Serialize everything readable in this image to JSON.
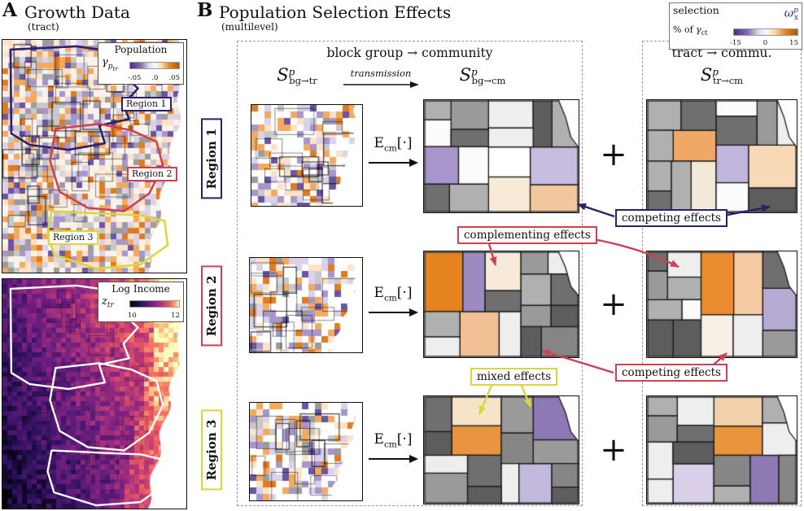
{
  "panel_a": {
    "label": "A",
    "title": "Growth Data",
    "subtitle": "(tract)",
    "growth_legend": {
      "title": "Population",
      "sym_base": "γ",
      "sym_sub": "p",
      "sym_subsub": "tr",
      "ticks": [
        "-.05",
        ".0",
        ".05"
      ]
    },
    "income_legend": {
      "title": "Log Income",
      "sym_base": "z",
      "sym_sub": "tr",
      "ticks": [
        "10",
        "12"
      ]
    },
    "region_labels": {
      "r1": "Region 1",
      "r2": "Region 2",
      "r3": "Region 3"
    }
  },
  "panel_b": {
    "label": "B",
    "title": "Population Selection Effects",
    "subtitle": "(multilevel)",
    "selection_legend": {
      "line1": "selection",
      "pct": "% of ",
      "pct_sym": "γ",
      "pct_sub": "ct",
      "sym_base": "ω",
      "sym_sup": "p",
      "sym_sub": "x",
      "ticks": [
        "-15",
        "0",
        "15"
      ]
    },
    "left_box": {
      "header": "block group → community",
      "map1_sym": {
        "base": "S",
        "sup": "p",
        "sub": "bg→tr"
      },
      "transmission": "transmission",
      "map2_sym": {
        "base": "S",
        "sup": "p",
        "sub": "bg→cm"
      }
    },
    "right_box": {
      "header": "tract → commu.",
      "map_sym": {
        "base": "S",
        "sup": "p",
        "sub": "tr→cm"
      }
    },
    "expectation": {
      "base": "E",
      "sub": "cm",
      "brackets": "[·]"
    },
    "plus": "+",
    "row_labels": {
      "r1": "Region 1",
      "r2": "Region 2",
      "r3": "Region 3"
    },
    "annotations": {
      "competing_top": "competing effects",
      "complementing": "complementing effects",
      "competing_bottom": "competing effects",
      "mixed": "mixed effects"
    }
  },
  "colors": {
    "region1": "#2e1f68",
    "region2": "#cf4054",
    "region3": "#ddd63a",
    "omega": "#3a2d7d",
    "selection_negative": "#542788",
    "selection_positive": "#e08214"
  },
  "map_palettes": {
    "growth_weights": [
      [
        "#f9f3ec",
        0.26
      ],
      [
        "#fce3c8",
        0.13
      ],
      [
        "#f5a95c",
        0.12
      ],
      [
        "#e07b20",
        0.07
      ],
      [
        "#d9d2ea",
        0.12
      ],
      [
        "#a796c9",
        0.09
      ],
      [
        "#6a55a0",
        0.05
      ],
      [
        "#9c9c9c",
        0.08
      ],
      [
        "#c8c8c8",
        0.08
      ]
    ],
    "block_weights": [
      [
        "#ffffff",
        0.44
      ],
      [
        "#fce3c8",
        0.1
      ],
      [
        "#f5a95c",
        0.1
      ],
      [
        "#e07b20",
        0.05
      ],
      [
        "#d9d2ea",
        0.1
      ],
      [
        "#a796c9",
        0.09
      ],
      [
        "#6a55a0",
        0.05
      ],
      [
        "#9c9c9c",
        0.04
      ],
      [
        "#c8c8c8",
        0.03
      ]
    ],
    "magma_stops": [
      [
        0,
        "#000004"
      ],
      [
        0.22,
        "#2c115f"
      ],
      [
        0.45,
        "#721f81"
      ],
      [
        0.65,
        "#b73779"
      ],
      [
        0.82,
        "#f1605d"
      ],
      [
        0.93,
        "#feb078"
      ],
      [
        1,
        "#fcfdbf"
      ]
    ],
    "community_fills": [
      "#6f6f6f",
      "#868686",
      "#9a9a9a",
      "#5d5d5d",
      "#b0b0b0",
      "#fbfbfb",
      "#eeeeee"
    ],
    "community_accents": {
      "r1_mid": [
        "#c8bcdf",
        "#f7ead6",
        "#a795cb",
        "#f3c79d",
        "#ffffff"
      ],
      "r1_right": [
        "#f7d9b8",
        "#f0a866",
        "#f3e9da",
        "#c0b5da"
      ],
      "r2_mid": [
        "#e5841f",
        "#f2c095",
        "#f8ead8",
        "#9c8bc0"
      ],
      "r2_right": [
        "#ea8c2e",
        "#f4cba2",
        "#b7abd4",
        "#f8f0e4"
      ],
      "r3_mid": [
        "#8d7ab5",
        "#e9953f",
        "#f6e3c8",
        "#c4b9dc"
      ],
      "r3_right": [
        "#d9cfe8",
        "#e8953d",
        "#f3d2ab",
        "#8d7ab5"
      ]
    }
  }
}
